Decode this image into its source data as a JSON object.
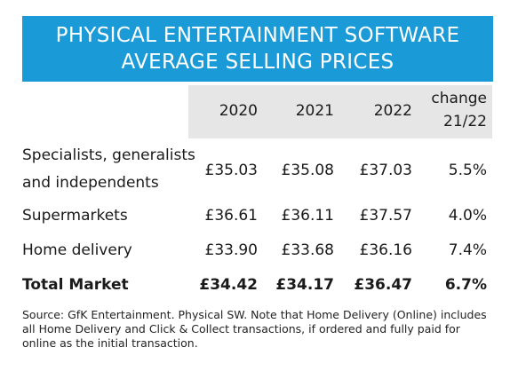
{
  "title": {
    "line1": "PHYSICAL ENTERTAINMENT SOFTWARE",
    "line2": "AVERAGE SELLING PRICES"
  },
  "colors": {
    "accent": "#1a9ad6",
    "header_band": "#e6e6e6"
  },
  "table": {
    "columns": [
      "2020",
      "2021",
      "2022",
      "change",
      "21/22"
    ],
    "rows": [
      {
        "label_line1": "Specialists, generalists",
        "label_line2": "and independents",
        "values": [
          "£35.03",
          "£35.08",
          "£37.03",
          "5.5%"
        ]
      },
      {
        "label": "Supermarkets",
        "values": [
          "£36.61",
          "£36.11",
          "£37.57",
          "4.0%"
        ]
      },
      {
        "label": "Home delivery",
        "values": [
          "£33.90",
          "£33.68",
          "£36.16",
          "7.4%"
        ]
      },
      {
        "label": "Total Market",
        "values": [
          "£34.42",
          "£34.17",
          "£36.47",
          "6.7%"
        ]
      }
    ]
  },
  "source": "Source: GfK Entertainment.  Physical SW.  Note that Home Delivery (Online) includes all Home Delivery and Click & Collect transactions, if ordered and fully paid for online as the initial transaction."
}
